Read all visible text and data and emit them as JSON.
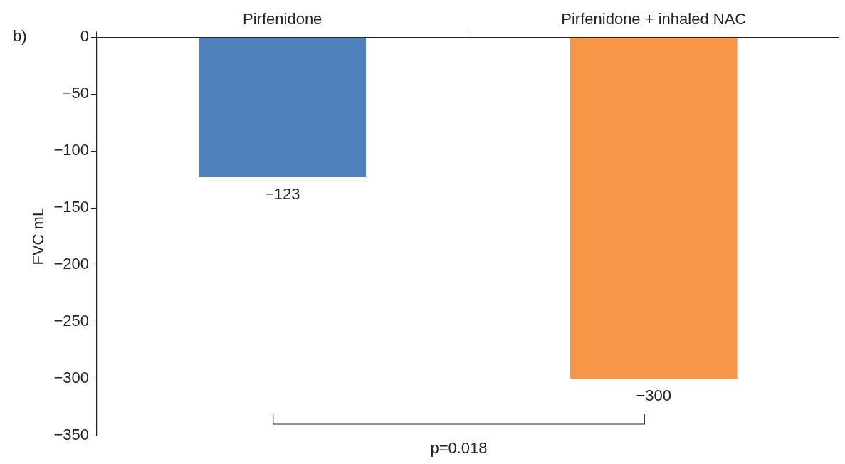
{
  "chart_data": {
    "type": "bar",
    "categories": [
      "Pirfenidone",
      "Pirfenidone + inhaled NAC"
    ],
    "values": [
      -123,
      -300
    ],
    "colors": [
      "#4f81bd",
      "#f79646"
    ],
    "value_labels": [
      "−123",
      "−300"
    ],
    "ylabel": "FVC mL",
    "ylim": [
      -350,
      0
    ],
    "yticks": [
      -350,
      -300,
      -250,
      -200,
      -150,
      -100,
      -50,
      0
    ],
    "annotations": [
      "b)",
      "p=0.018"
    ],
    "grid": false,
    "legend": false
  }
}
